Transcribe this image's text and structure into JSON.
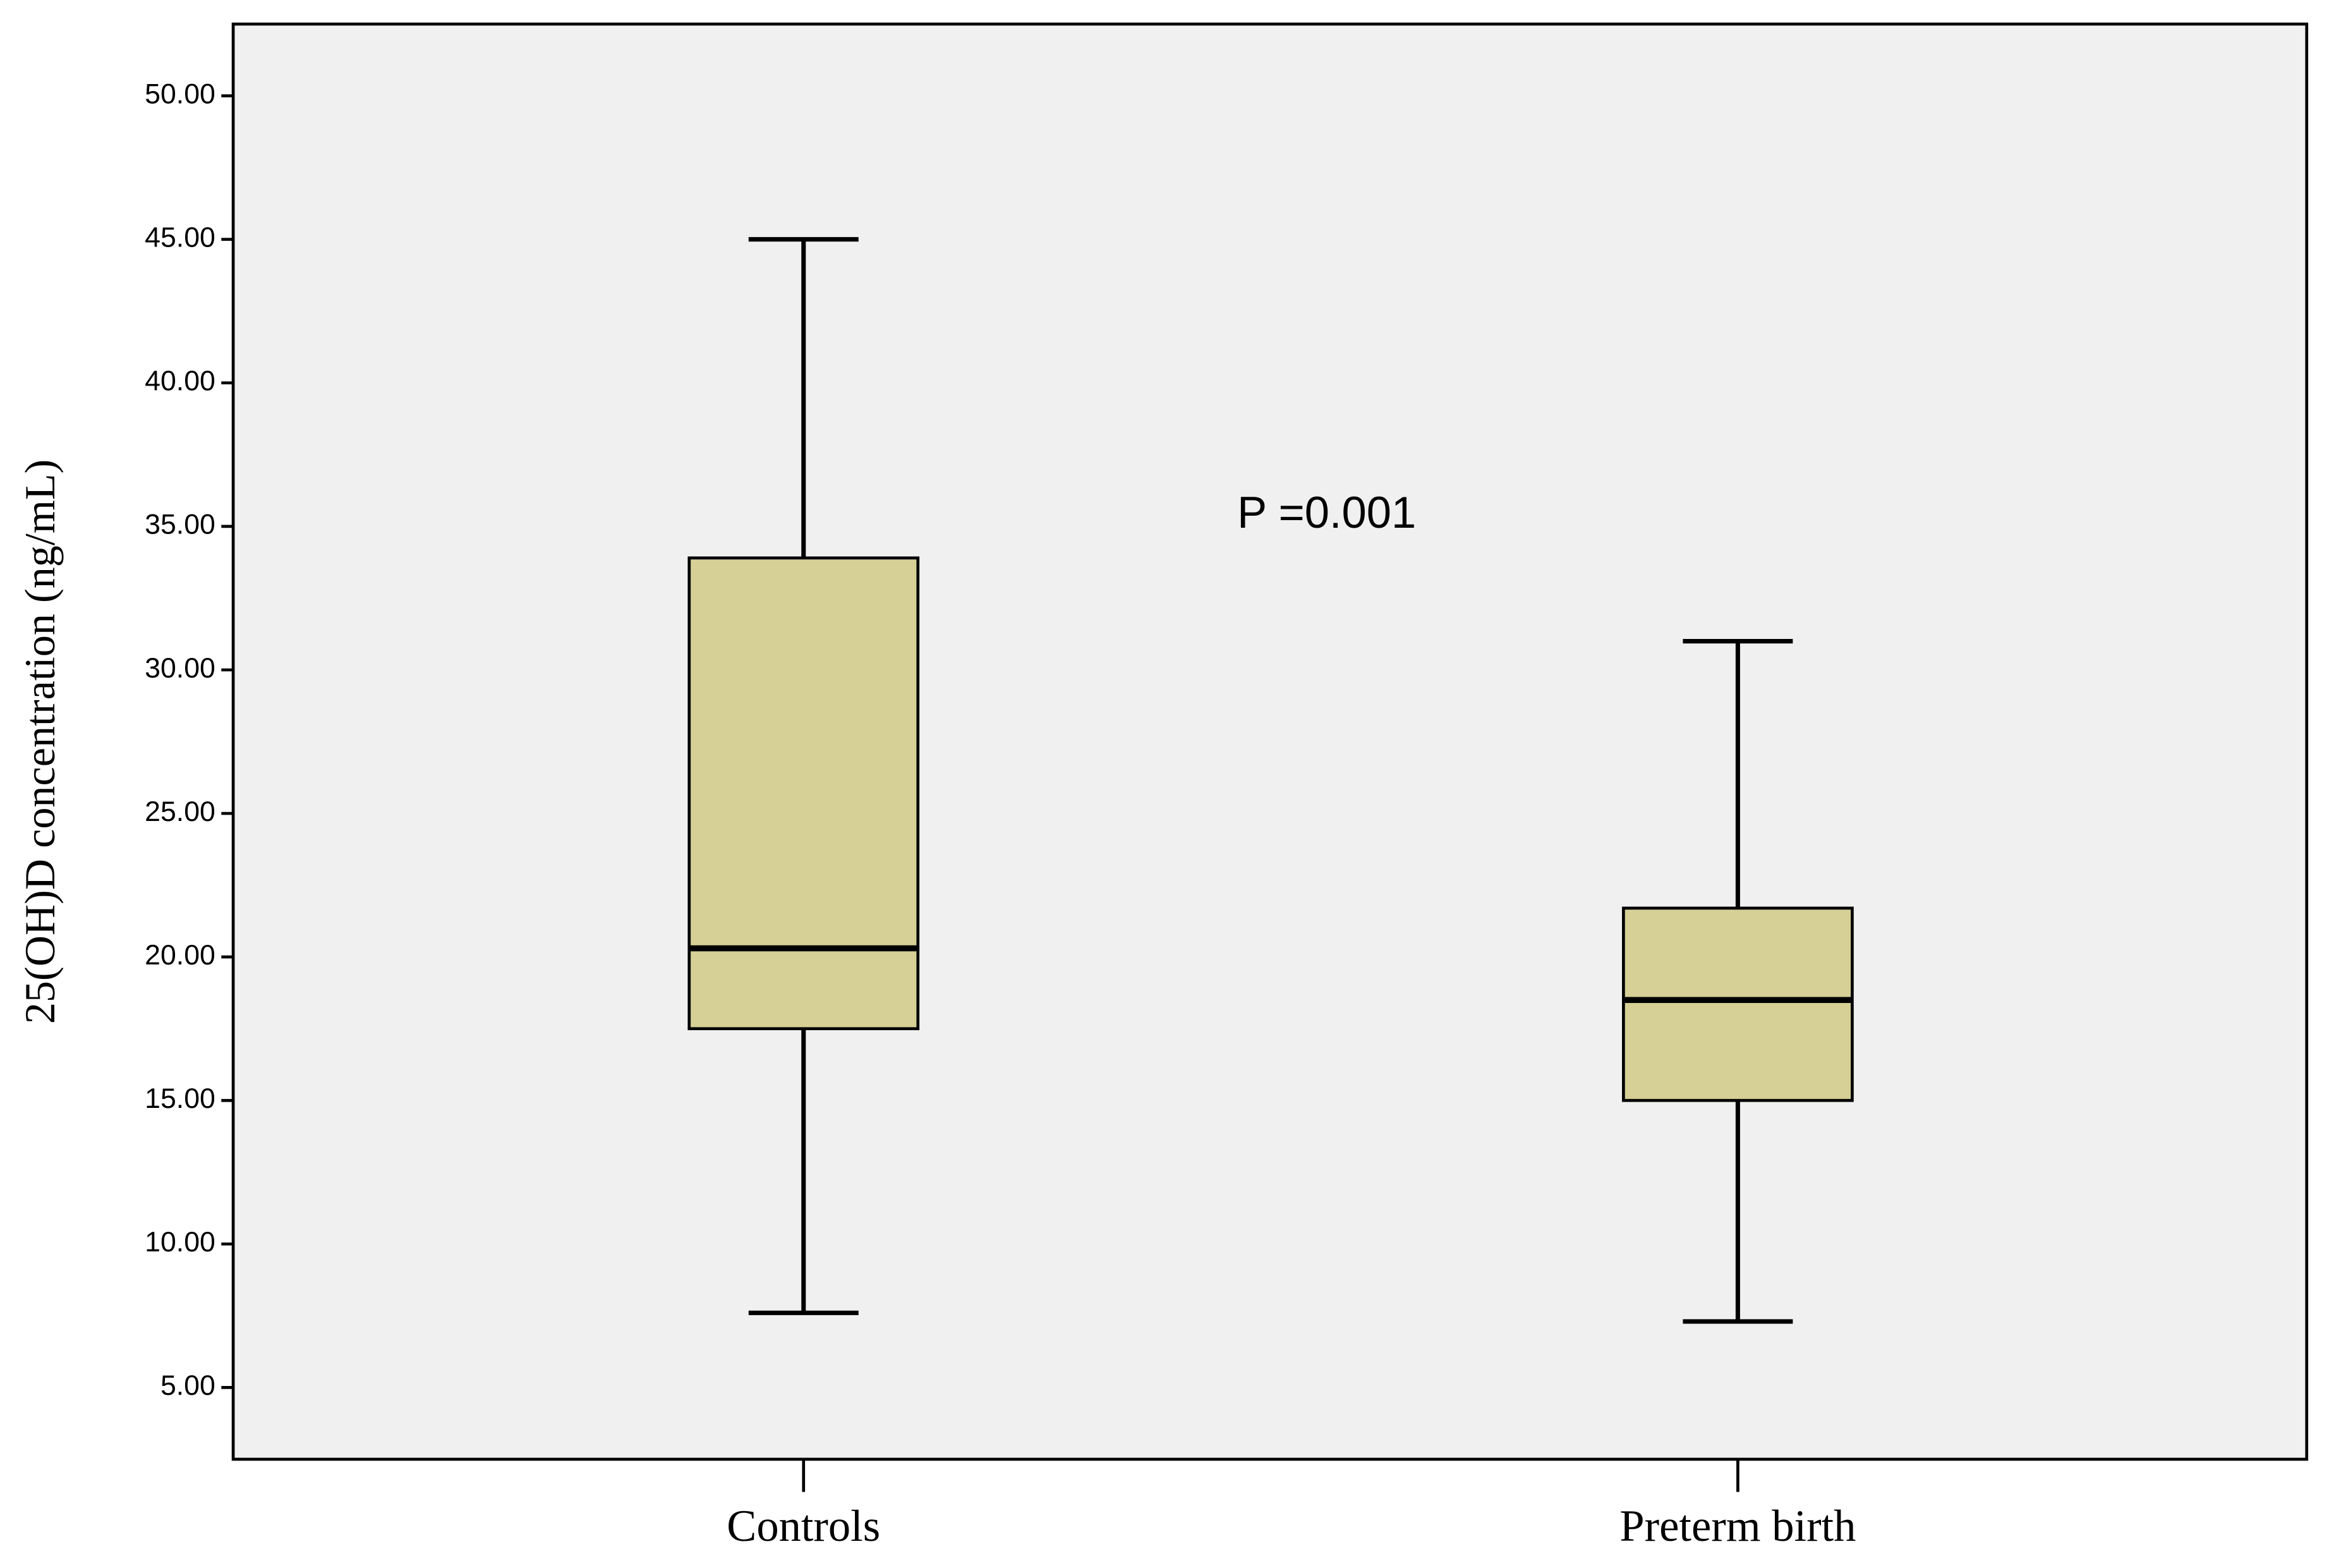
{
  "chart_data": {
    "type": "box",
    "y_label": "25(OH)D concentration (ng/mL)",
    "categories": [
      "Controls",
      "Preterm birth"
    ],
    "boxes": [
      {
        "min": 7.6,
        "q1": 17.5,
        "median": 20.3,
        "q3": 33.9,
        "max": 45
      },
      {
        "min": 7.3,
        "q1": 15.0,
        "median": 18.5,
        "q3": 21.7,
        "max": 31
      }
    ],
    "color": "#d6cf96",
    "background": "#f0f0f0",
    "annotation": "P =0.001",
    "ylim": [
      2.5,
      52.5
    ],
    "yticks": [
      {
        "value": 5,
        "label": "5.00"
      },
      {
        "value": 10,
        "label": "10.00"
      },
      {
        "value": 15,
        "label": "15.00"
      },
      {
        "value": 20,
        "label": "20.00"
      },
      {
        "value": 25,
        "label": "25.00"
      },
      {
        "value": 30,
        "label": "30.00"
      },
      {
        "value": 35,
        "label": "35.00"
      },
      {
        "value": 40,
        "label": "40.00"
      },
      {
        "value": 45,
        "label": "45.00"
      },
      {
        "value": 50,
        "label": "50.00"
      }
    ]
  }
}
